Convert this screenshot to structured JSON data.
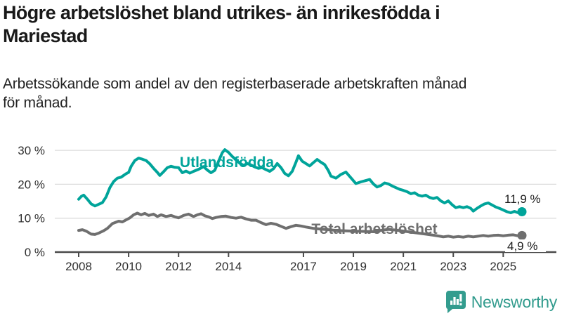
{
  "header": {
    "title_lines": [
      "Högre arbetslöshet bland utrikes- än inrikesfödda i",
      "Mariestad"
    ],
    "subtitle_lines": [
      "Arbetssökande som andel av den registerbaserade arbetskraften månad",
      "för månad."
    ]
  },
  "chart_data": {
    "type": "line",
    "title": "Högre arbetslöshet bland utrikes- än inrikesfödda i Mariestad",
    "subtitle": "Arbetssökande som andel av den registerbaserade arbetskraften månad för månad.",
    "unit": "%",
    "grid": "horizontal",
    "x_axis": {
      "ticks": [
        2008,
        2010,
        2012,
        2014,
        2017,
        2019,
        2021,
        2023,
        2025
      ],
      "range": [
        2007.0,
        2027.1
      ]
    },
    "y_axis": {
      "ticks": [
        0,
        10,
        20,
        30
      ],
      "tick_labels": [
        "0 %",
        "10 %",
        "20 %",
        "30 %"
      ],
      "range": [
        0,
        31.5
      ]
    },
    "series": [
      {
        "name": "Utlandsfödda",
        "color": "#00a49a",
        "end_label": "11,9 %",
        "last_value": 11.9,
        "points": [
          [
            2008.0,
            15.6
          ],
          [
            2008.1,
            16.4
          ],
          [
            2008.2,
            16.8
          ],
          [
            2008.35,
            15.6
          ],
          [
            2008.5,
            14.2
          ],
          [
            2008.65,
            13.6
          ],
          [
            2008.8,
            14.1
          ],
          [
            2008.95,
            14.6
          ],
          [
            2009.1,
            16.3
          ],
          [
            2009.25,
            19.0
          ],
          [
            2009.4,
            20.8
          ],
          [
            2009.55,
            21.8
          ],
          [
            2009.7,
            22.1
          ],
          [
            2009.8,
            22.6
          ],
          [
            2009.9,
            23.1
          ],
          [
            2010.0,
            23.5
          ],
          [
            2010.1,
            25.3
          ],
          [
            2010.25,
            27.0
          ],
          [
            2010.4,
            27.7
          ],
          [
            2010.55,
            27.4
          ],
          [
            2010.7,
            27.0
          ],
          [
            2010.85,
            26.0
          ],
          [
            2011.0,
            24.7
          ],
          [
            2011.15,
            23.5
          ],
          [
            2011.25,
            22.6
          ],
          [
            2011.4,
            23.7
          ],
          [
            2011.55,
            24.9
          ],
          [
            2011.7,
            25.3
          ],
          [
            2011.85,
            25.0
          ],
          [
            2012.0,
            24.9
          ],
          [
            2012.15,
            23.4
          ],
          [
            2012.3,
            23.9
          ],
          [
            2012.45,
            23.3
          ],
          [
            2012.6,
            23.8
          ],
          [
            2012.8,
            24.4
          ],
          [
            2013.0,
            25.2
          ],
          [
            2013.15,
            24.2
          ],
          [
            2013.3,
            23.4
          ],
          [
            2013.45,
            24.1
          ],
          [
            2013.6,
            26.8
          ],
          [
            2013.75,
            29.3
          ],
          [
            2013.85,
            30.2
          ],
          [
            2014.0,
            29.4
          ],
          [
            2014.15,
            28.2
          ],
          [
            2014.3,
            27.2
          ],
          [
            2014.45,
            26.2
          ],
          [
            2014.6,
            25.6
          ],
          [
            2014.75,
            26.1
          ],
          [
            2014.9,
            25.7
          ],
          [
            2015.05,
            25.1
          ],
          [
            2015.2,
            24.7
          ],
          [
            2015.35,
            24.9
          ],
          [
            2015.5,
            24.3
          ],
          [
            2015.65,
            23.8
          ],
          [
            2015.8,
            24.6
          ],
          [
            2015.95,
            26.1
          ],
          [
            2016.1,
            24.9
          ],
          [
            2016.25,
            23.2
          ],
          [
            2016.4,
            22.5
          ],
          [
            2016.55,
            23.8
          ],
          [
            2016.7,
            26.5
          ],
          [
            2016.8,
            28.4
          ],
          [
            2016.95,
            26.8
          ],
          [
            2017.1,
            26.1
          ],
          [
            2017.25,
            25.4
          ],
          [
            2017.4,
            26.4
          ],
          [
            2017.55,
            27.3
          ],
          [
            2017.7,
            26.5
          ],
          [
            2017.85,
            25.8
          ],
          [
            2018.0,
            24.0
          ],
          [
            2018.1,
            22.4
          ],
          [
            2018.3,
            21.8
          ],
          [
            2018.5,
            22.9
          ],
          [
            2018.7,
            23.6
          ],
          [
            2018.9,
            21.9
          ],
          [
            2019.1,
            20.2
          ],
          [
            2019.3,
            20.7
          ],
          [
            2019.5,
            21.1
          ],
          [
            2019.65,
            21.4
          ],
          [
            2019.8,
            20.1
          ],
          [
            2019.95,
            19.2
          ],
          [
            2020.1,
            19.6
          ],
          [
            2020.25,
            20.4
          ],
          [
            2020.4,
            20.1
          ],
          [
            2020.55,
            19.5
          ],
          [
            2020.7,
            19.0
          ],
          [
            2020.85,
            18.5
          ],
          [
            2021.0,
            18.2
          ],
          [
            2021.15,
            17.8
          ],
          [
            2021.3,
            17.2
          ],
          [
            2021.45,
            17.5
          ],
          [
            2021.6,
            16.8
          ],
          [
            2021.75,
            16.5
          ],
          [
            2021.9,
            16.8
          ],
          [
            2022.05,
            16.1
          ],
          [
            2022.2,
            15.8
          ],
          [
            2022.35,
            16.1
          ],
          [
            2022.5,
            15.1
          ],
          [
            2022.65,
            14.5
          ],
          [
            2022.8,
            15.1
          ],
          [
            2022.95,
            14.0
          ],
          [
            2023.1,
            13.1
          ],
          [
            2023.25,
            13.4
          ],
          [
            2023.4,
            13.1
          ],
          [
            2023.55,
            13.4
          ],
          [
            2023.7,
            12.9
          ],
          [
            2023.8,
            12.1
          ],
          [
            2023.95,
            12.9
          ],
          [
            2024.1,
            13.6
          ],
          [
            2024.25,
            14.2
          ],
          [
            2024.4,
            14.5
          ],
          [
            2024.55,
            13.9
          ],
          [
            2024.7,
            13.3
          ],
          [
            2024.85,
            12.9
          ],
          [
            2025.0,
            12.4
          ],
          [
            2025.15,
            11.9
          ],
          [
            2025.3,
            11.6
          ],
          [
            2025.45,
            12.0
          ],
          [
            2025.6,
            11.6
          ],
          [
            2025.75,
            11.9
          ]
        ]
      },
      {
        "name": "Total arbetslöshet",
        "color": "#6f6f6f",
        "end_label": "4,9 %",
        "last_value": 4.9,
        "points": [
          [
            2008.0,
            6.4
          ],
          [
            2008.15,
            6.6
          ],
          [
            2008.3,
            6.2
          ],
          [
            2008.5,
            5.3
          ],
          [
            2008.65,
            5.2
          ],
          [
            2008.8,
            5.6
          ],
          [
            2009.0,
            6.3
          ],
          [
            2009.15,
            7.0
          ],
          [
            2009.35,
            8.4
          ],
          [
            2009.6,
            9.1
          ],
          [
            2009.75,
            8.9
          ],
          [
            2009.9,
            9.5
          ],
          [
            2010.05,
            10.1
          ],
          [
            2010.2,
            11.0
          ],
          [
            2010.35,
            11.5
          ],
          [
            2010.5,
            11.0
          ],
          [
            2010.65,
            11.4
          ],
          [
            2010.8,
            10.8
          ],
          [
            2011.0,
            11.2
          ],
          [
            2011.15,
            10.5
          ],
          [
            2011.3,
            11.0
          ],
          [
            2011.5,
            10.5
          ],
          [
            2011.7,
            10.8
          ],
          [
            2011.85,
            10.4
          ],
          [
            2012.0,
            10.1
          ],
          [
            2012.2,
            10.8
          ],
          [
            2012.4,
            11.2
          ],
          [
            2012.6,
            10.5
          ],
          [
            2012.75,
            11.0
          ],
          [
            2012.9,
            11.3
          ],
          [
            2013.05,
            10.7
          ],
          [
            2013.2,
            10.4
          ],
          [
            2013.35,
            9.9
          ],
          [
            2013.5,
            10.2
          ],
          [
            2013.7,
            10.5
          ],
          [
            2013.9,
            10.6
          ],
          [
            2014.1,
            10.2
          ],
          [
            2014.3,
            10.0
          ],
          [
            2014.5,
            10.3
          ],
          [
            2014.7,
            9.8
          ],
          [
            2014.9,
            9.4
          ],
          [
            2015.1,
            9.4
          ],
          [
            2015.3,
            8.7
          ],
          [
            2015.5,
            8.1
          ],
          [
            2015.7,
            8.5
          ],
          [
            2015.9,
            8.2
          ],
          [
            2016.1,
            7.6
          ],
          [
            2016.3,
            7.0
          ],
          [
            2016.5,
            7.5
          ],
          [
            2016.7,
            7.9
          ],
          [
            2016.9,
            7.7
          ],
          [
            2017.1,
            7.4
          ],
          [
            2017.4,
            7.0
          ],
          [
            2017.7,
            6.8
          ],
          [
            2018.0,
            6.6
          ],
          [
            2018.3,
            6.4
          ],
          [
            2018.6,
            6.3
          ],
          [
            2019.0,
            6.2
          ],
          [
            2019.4,
            6.1
          ],
          [
            2019.8,
            6.0
          ],
          [
            2020.1,
            6.4
          ],
          [
            2020.4,
            6.7
          ],
          [
            2020.7,
            6.5
          ],
          [
            2021.0,
            6.2
          ],
          [
            2021.3,
            5.9
          ],
          [
            2021.6,
            5.6
          ],
          [
            2021.9,
            5.3
          ],
          [
            2022.2,
            5.0
          ],
          [
            2022.45,
            4.7
          ],
          [
            2022.6,
            4.5
          ],
          [
            2022.8,
            4.7
          ],
          [
            2023.0,
            4.4
          ],
          [
            2023.2,
            4.6
          ],
          [
            2023.4,
            4.4
          ],
          [
            2023.6,
            4.7
          ],
          [
            2023.8,
            4.5
          ],
          [
            2024.0,
            4.7
          ],
          [
            2024.2,
            4.9
          ],
          [
            2024.4,
            4.7
          ],
          [
            2024.6,
            4.9
          ],
          [
            2024.8,
            5.0
          ],
          [
            2025.0,
            4.8
          ],
          [
            2025.2,
            5.0
          ],
          [
            2025.4,
            5.1
          ],
          [
            2025.6,
            4.8
          ],
          [
            2025.75,
            4.9
          ]
        ]
      }
    ]
  },
  "footer": {
    "brand": "Newsworthy",
    "brand_color": "#339c8e",
    "icon": "newsworthy-speech-bubble-bar-chart-icon"
  }
}
